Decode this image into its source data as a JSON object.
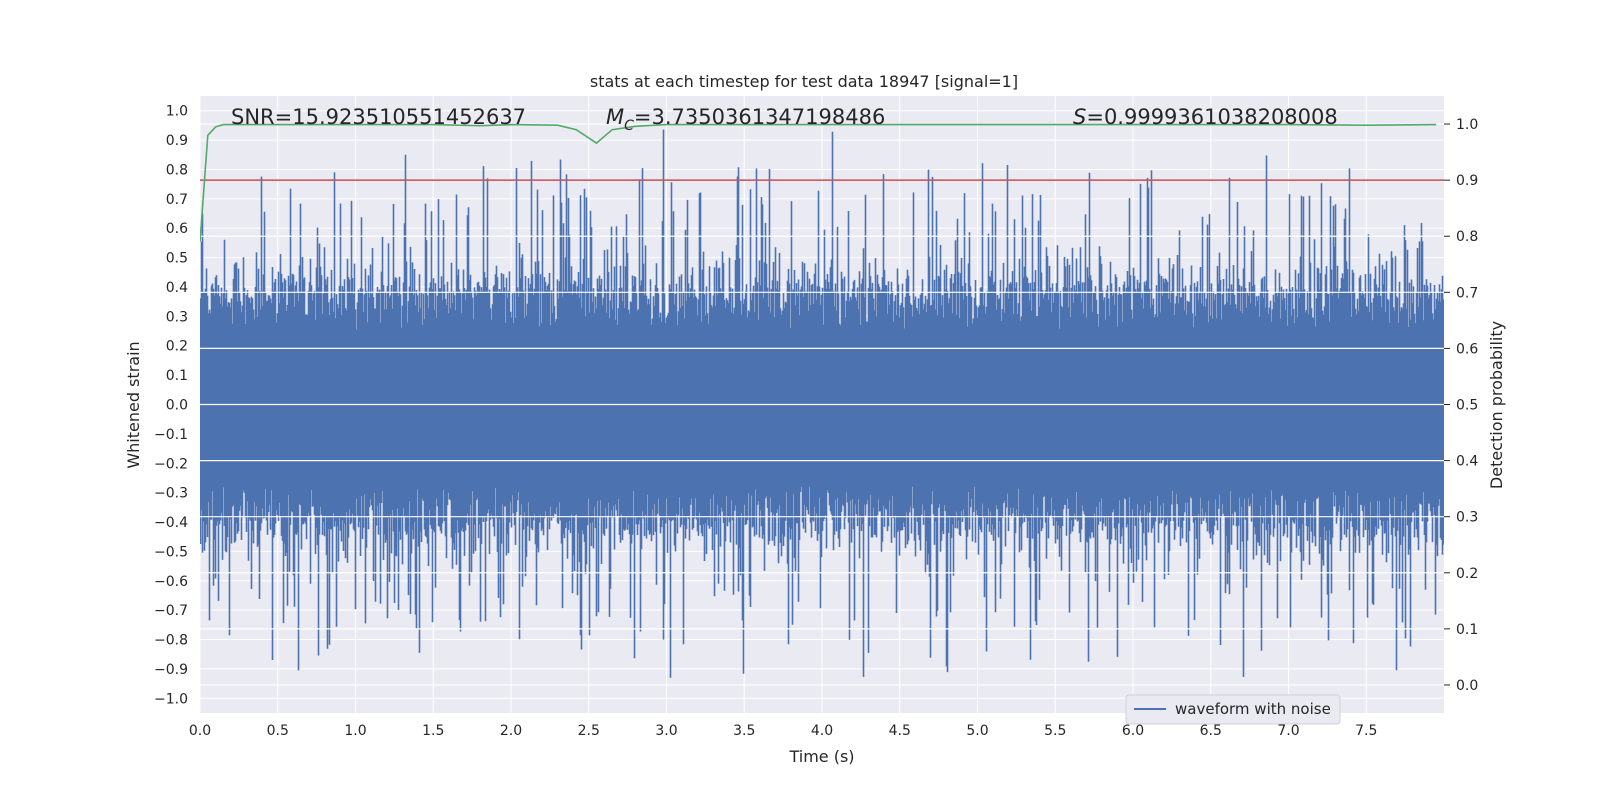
{
  "chart_data": {
    "type": "line",
    "title": "stats at each timestep for test data 18947 [signal=1]",
    "xlabel": "Time (s)",
    "ylabel": "Whitened strain",
    "y2label": "Detection probability",
    "xlim": [
      0.0,
      8.0
    ],
    "ylim": [
      -1.05,
      1.05
    ],
    "y2lim": [
      -0.05,
      1.05
    ],
    "xticks": [
      "0.0",
      "0.5",
      "1.0",
      "1.5",
      "2.0",
      "2.5",
      "3.0",
      "3.5",
      "4.0",
      "4.5",
      "5.0",
      "5.5",
      "6.0",
      "6.5",
      "7.0",
      "7.5"
    ],
    "yticks": [
      "1.0",
      "0.9",
      "0.8",
      "0.7",
      "0.6",
      "0.5",
      "0.4",
      "0.3",
      "0.2",
      "0.1",
      "0.0",
      "−0.1",
      "−0.2",
      "−0.3",
      "−0.4",
      "−0.5",
      "−0.6",
      "−0.7",
      "−0.8",
      "−0.9",
      "−1.0"
    ],
    "y2ticks": [
      "1.0",
      "0.9",
      "0.8",
      "0.7",
      "0.6",
      "0.5",
      "0.4",
      "0.3",
      "0.2",
      "0.1",
      "0.0"
    ],
    "annotations": {
      "snr": "SNR=15.923510551452637",
      "mc_symbol": "M",
      "mc_sub": "C",
      "mc_value": "=3.7350361347198486",
      "s_symbol": "S",
      "s_value": "=0.9999361038208008"
    },
    "threshold": {
      "value": 0.9,
      "axis": "right",
      "color": "#c44e52"
    },
    "series": [
      {
        "name": "waveform with noise",
        "axis": "left",
        "color": "#4c72b0",
        "sample_rate": 1024,
        "samples": 8192,
        "envelope_top": 0.42,
        "envelope_bottom": -0.45
      },
      {
        "name": "detection probability",
        "axis": "right",
        "color": "#55a868",
        "x": [
          0.0,
          0.05,
          0.1,
          0.15,
          0.5,
          1.0,
          1.5,
          1.8,
          2.0,
          2.3,
          2.42,
          2.55,
          2.65,
          2.8,
          3.0,
          4.0,
          5.0,
          6.0,
          7.0,
          7.5,
          7.95
        ],
        "y": [
          0.79,
          0.98,
          0.995,
          0.999,
          0.999,
          0.999,
          0.999,
          0.997,
          0.999,
          0.998,
          0.99,
          0.966,
          0.99,
          0.996,
          0.999,
          0.999,
          0.999,
          0.999,
          0.999,
          0.998,
          0.999
        ]
      }
    ],
    "legend": {
      "label": "waveform with noise",
      "location": "lower-right"
    }
  },
  "colors": {
    "axes_bg": "#eaeaf2",
    "grid": "#ffffff",
    "text": "#262626"
  }
}
